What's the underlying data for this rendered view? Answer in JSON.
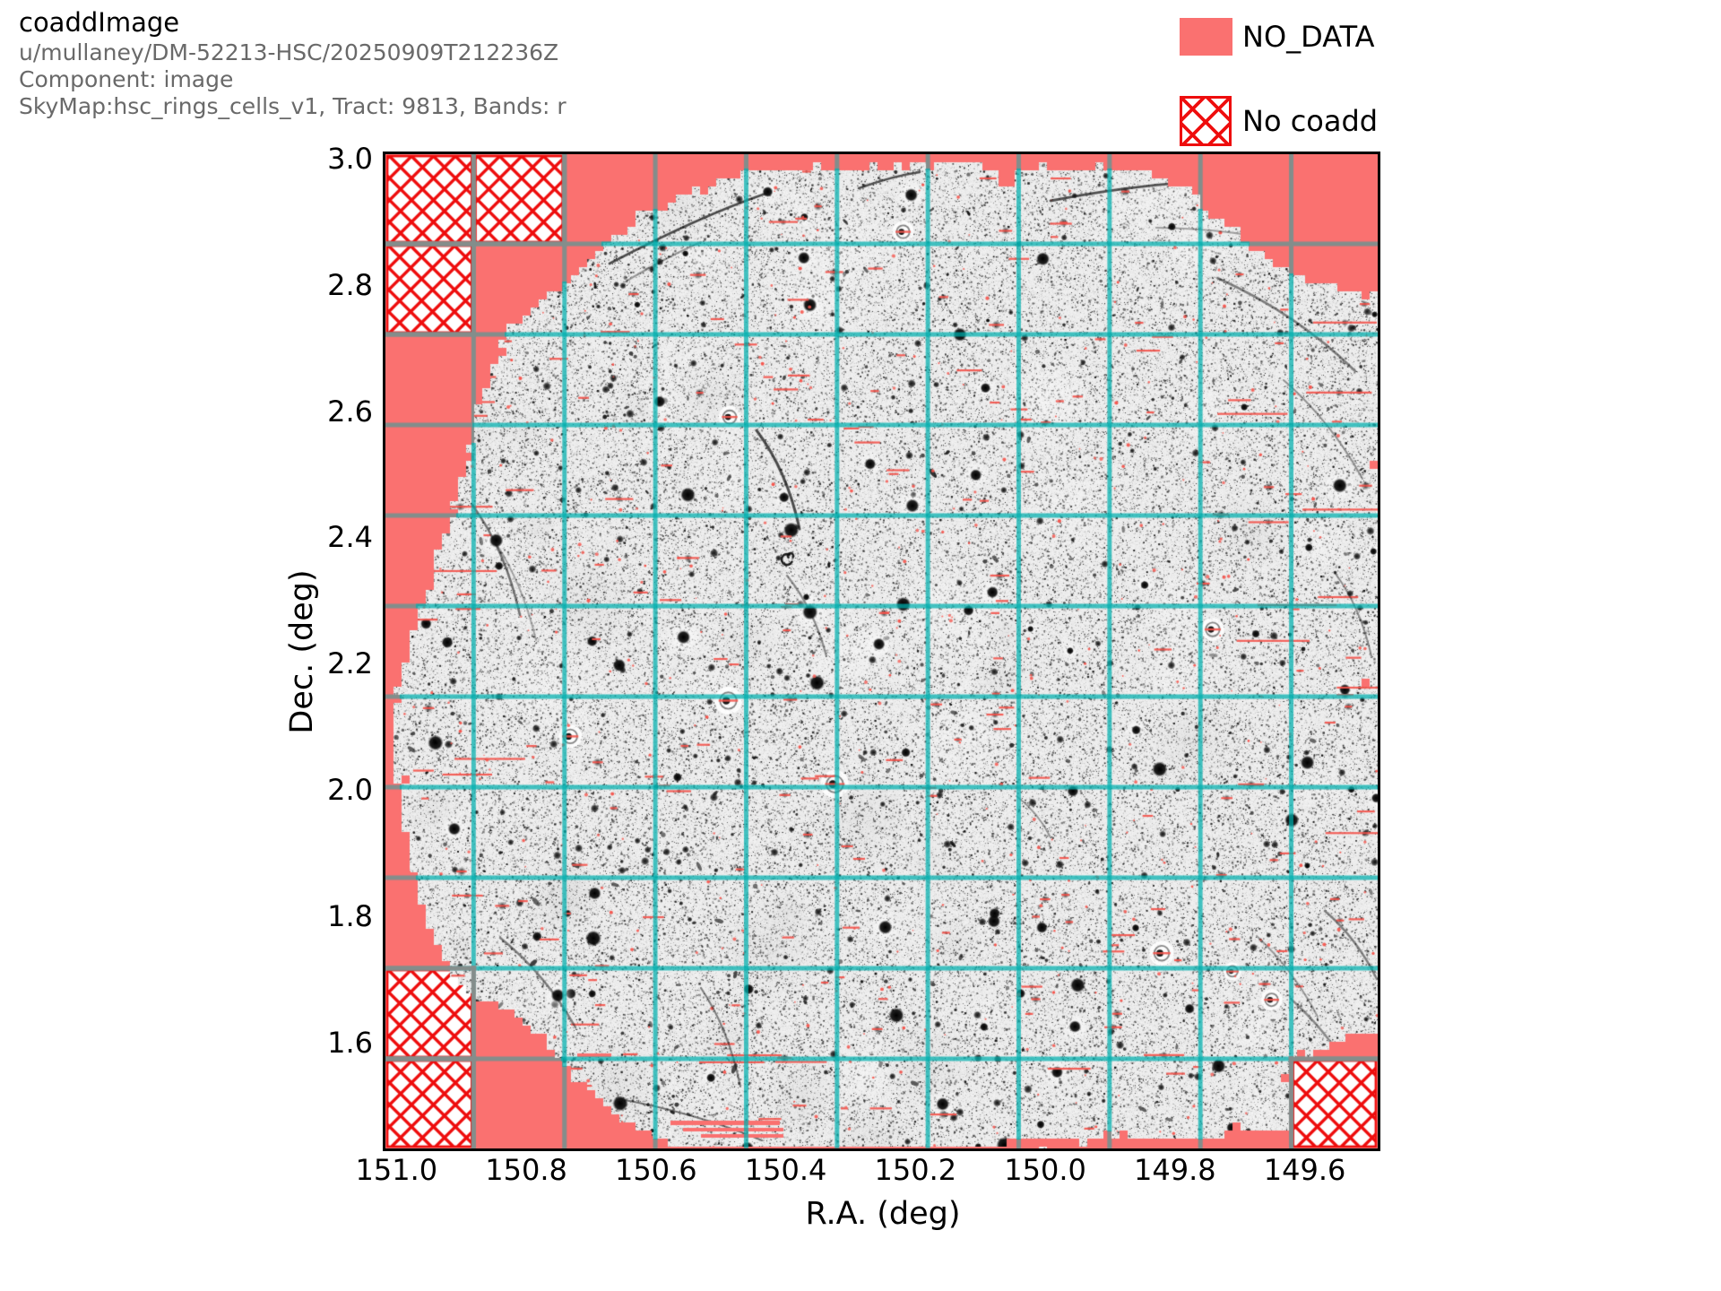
{
  "figure": {
    "title": "coaddImage",
    "subtitle_lines": [
      "u/mullaney/DM-52213-HSC/20250909T212236Z",
      "Component: image",
      "SkyMap:hsc_rings_cells_v1, Tract: 9813, Bands: r"
    ]
  },
  "legend": {
    "items": [
      {
        "label": "NO_DATA",
        "swatch": "no-data-solid-patch"
      },
      {
        "label": "No coadd",
        "swatch": "no-coadd-hatch-patch"
      }
    ]
  },
  "axes": {
    "xlabel": "R.A. (deg)",
    "ylabel": "Dec. (deg)",
    "x_tick_labels": [
      "151.0",
      "150.8",
      "150.6",
      "150.4",
      "150.2",
      "150.0",
      "149.8",
      "149.6"
    ],
    "y_tick_labels": [
      "3.0",
      "2.8",
      "2.6",
      "2.4",
      "2.2",
      "2.0",
      "1.8",
      "1.6"
    ]
  },
  "chart_data": {
    "type": "heatmap",
    "title": "coaddImage",
    "subtitle": "u/mullaney/DM-52213-HSC/20250909T212236Z | Component: image | SkyMap:hsc_rings_cells_v1, Tract: 9813, Bands: r",
    "xlabel": "R.A. (deg)",
    "ylabel": "Dec. (deg)",
    "x_tick_values": [
      151.0,
      150.8,
      150.6,
      150.4,
      150.2,
      150.0,
      149.8,
      149.6
    ],
    "y_tick_values": [
      3.0,
      2.8,
      2.6,
      2.4,
      2.2,
      2.0,
      1.8,
      1.6
    ],
    "x_axis_inverted": true,
    "xlim": [
      151.016,
      149.494
    ],
    "ylim": [
      1.433,
      3.007
    ],
    "grid": {
      "patch_columns": 11,
      "patch_rows": 11,
      "grid_on": true
    },
    "content": "Grayscale r-band coadd image of HSC tract 9813 with roughly circular survey footprint; fine speckle noise with black sources, red mask dots and dashes, faint satellite trails; 11x11 patch boundary grid drawn cyan over image data and grey over NO_DATA regions",
    "no_data_region": "salmon background outside the circular footprint, mainly at the four corners",
    "no_coadd_patches_col_row": [
      [
        0,
        0
      ],
      [
        1,
        0
      ],
      [
        0,
        1
      ],
      [
        0,
        9
      ],
      [
        0,
        10
      ],
      [
        10,
        10
      ]
    ],
    "legend_entries": [
      "NO_DATA",
      "No coadd"
    ],
    "legend_position": "upper right, outside axes"
  },
  "colors": {
    "no_data": "#FA7170",
    "hatch_red": "#EE0D0D",
    "grid_over_nodata": "#848D8B",
    "grid_over_data": "#00ACAC",
    "frame": "#000000",
    "subtitle_grey": "#696969",
    "noise_background": "#ECECEC"
  }
}
